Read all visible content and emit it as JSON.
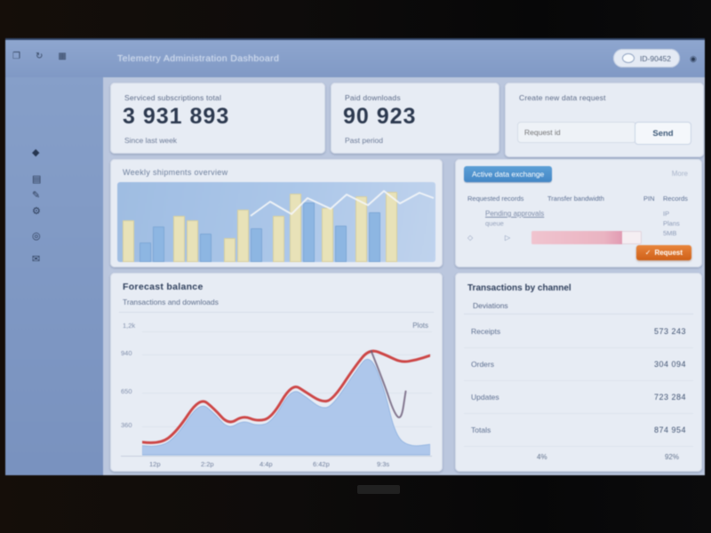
{
  "header": {
    "title": "Telemetry Administration Dashboard",
    "window_icons": [
      {
        "name": "window-icon",
        "glyph": "❐"
      },
      {
        "name": "refresh-icon",
        "glyph": "↻"
      },
      {
        "name": "apps-icon",
        "glyph": "▦"
      }
    ],
    "search_pill": {
      "text": "ID-90452"
    },
    "profile_glyph": "◉"
  },
  "sidebar": {
    "icons": [
      {
        "name": "dashboard-icon",
        "glyph": "◆"
      },
      {
        "name": "reports-icon",
        "glyph": "▤"
      },
      {
        "name": "edit-icon",
        "glyph": "✎"
      },
      {
        "name": "settings-icon",
        "glyph": "⚙"
      },
      {
        "name": "monitor-icon",
        "glyph": "◎"
      },
      {
        "name": "mail-icon",
        "glyph": "✉"
      }
    ]
  },
  "cards": [
    {
      "label": "Serviced subscriptions total",
      "value": "3 931 893",
      "sub": "Since last week"
    },
    {
      "label": "Paid downloads",
      "value": "90 923",
      "sub": "Past period"
    },
    {
      "label": "Create new data request",
      "input_placeholder": "Request id",
      "button": "Send"
    }
  ],
  "bar_panel": {
    "title": "Weekly shipments overview",
    "chart_data": {
      "type": "bar",
      "note": "heights are percent of plot height; c=cream series, b=blue series; g=gap px before bar",
      "bars": [
        {
          "v": 52,
          "c": "cream",
          "g": 6
        },
        {
          "v": 24,
          "c": "blue",
          "g": 6
        },
        {
          "v": 44,
          "c": "blue",
          "g": 2
        },
        {
          "v": 58,
          "c": "cream",
          "g": 10
        },
        {
          "v": 52,
          "c": "cream",
          "g": 2
        },
        {
          "v": 36,
          "c": "blue",
          "g": 2
        },
        {
          "v": 30,
          "c": "cream",
          "g": 14
        },
        {
          "v": 66,
          "c": "cream",
          "g": 2
        },
        {
          "v": 42,
          "c": "blue",
          "g": 2
        },
        {
          "v": 58,
          "c": "cream",
          "g": 12
        },
        {
          "v": 86,
          "c": "cream",
          "g": 6
        },
        {
          "v": 74,
          "c": "blue",
          "g": 2
        },
        {
          "v": 68,
          "c": "cream",
          "g": 8
        },
        {
          "v": 46,
          "c": "blue",
          "g": 2
        },
        {
          "v": 82,
          "c": "cream",
          "g": 10
        },
        {
          "v": 62,
          "c": "blue",
          "g": 2
        },
        {
          "v": 88,
          "c": "cream",
          "g": 6
        }
      ],
      "overlay_line": {
        "color": "#f4f6f8",
        "points": [
          [
            150,
            38
          ],
          [
            172,
            22
          ],
          [
            196,
            36
          ],
          [
            214,
            18
          ],
          [
            240,
            30
          ],
          [
            258,
            14
          ],
          [
            282,
            26
          ],
          [
            300,
            10
          ],
          [
            318,
            24
          ],
          [
            340,
            12
          ],
          [
            356,
            18
          ]
        ]
      }
    }
  },
  "stats_panel": {
    "tab": "Active data exchange",
    "more": "More",
    "columns": [
      "Requested records",
      "Transfer bandwidth",
      "PIN",
      "Records"
    ],
    "note_line1": "Pending approvals",
    "note_line2": "queue",
    "icons": {
      "diamond": "◇",
      "play": "▷"
    },
    "right_stats": [
      "IP",
      "Plans",
      "5MB"
    ],
    "progress_pct": 82,
    "button": {
      "icon": "✓",
      "label": "Request"
    }
  },
  "area_panel": {
    "title": "Forecast balance",
    "subtitle": "Transactions and downloads",
    "legend": "Plots",
    "ytop": "1,2k",
    "yticks": [
      "940",
      "650",
      "360"
    ],
    "xticks": [
      "12p",
      "2:2p",
      "4:4p",
      "6:42p",
      "9:3s"
    ],
    "chart_data": {
      "type": "area",
      "x_range": [
        0,
        10
      ],
      "y_range": [
        0,
        100
      ],
      "series": [
        {
          "name": "volume",
          "kind": "area",
          "color": "#a9c6ee",
          "points": [
            [
              0,
              8
            ],
            [
              0.6,
              6
            ],
            [
              1.2,
              16
            ],
            [
              2,
              46
            ],
            [
              2.5,
              36
            ],
            [
              3,
              22
            ],
            [
              3.5,
              30
            ],
            [
              4,
              25
            ],
            [
              4.5,
              28
            ],
            [
              5.2,
              58
            ],
            [
              5.7,
              50
            ],
            [
              6.2,
              40
            ],
            [
              6.6,
              42
            ],
            [
              7.4,
              72
            ],
            [
              7.9,
              88
            ],
            [
              8.4,
              58
            ],
            [
              8.8,
              16
            ],
            [
              9.3,
              7
            ],
            [
              10,
              9
            ]
          ]
        },
        {
          "name": "trend",
          "kind": "line",
          "color": "#d64545",
          "points": [
            [
              0,
              11
            ],
            [
              0.6,
              9
            ],
            [
              1.2,
              20
            ],
            [
              2,
              50
            ],
            [
              2.5,
              40
            ],
            [
              3,
              26
            ],
            [
              3.5,
              34
            ],
            [
              4,
              29
            ],
            [
              4.5,
              32
            ],
            [
              5.2,
              62
            ],
            [
              5.7,
              54
            ],
            [
              6.2,
              46
            ],
            [
              6.6,
              47
            ],
            [
              7.4,
              77
            ],
            [
              7.9,
              92
            ],
            [
              8.5,
              86
            ],
            [
              9,
              80
            ],
            [
              9.5,
              82
            ],
            [
              10,
              86
            ]
          ]
        },
        {
          "name": "correction",
          "kind": "line",
          "color": "#6b5a78",
          "points": [
            [
              7.95,
              90
            ],
            [
              8.4,
              62
            ],
            [
              8.75,
              36
            ],
            [
              9,
              30
            ],
            [
              9.15,
              55
            ]
          ]
        }
      ]
    }
  },
  "table_panel": {
    "title": "Transactions by channel",
    "subtitle": "Deviations",
    "rows": [
      {
        "label": "Receipts",
        "value": "573 243"
      },
      {
        "label": "Orders",
        "value": "304 094"
      },
      {
        "label": "Updates",
        "value": "723 284"
      },
      {
        "label": "Totals",
        "value": "874 954"
      }
    ],
    "footer": [
      "4%",
      "92%"
    ]
  }
}
